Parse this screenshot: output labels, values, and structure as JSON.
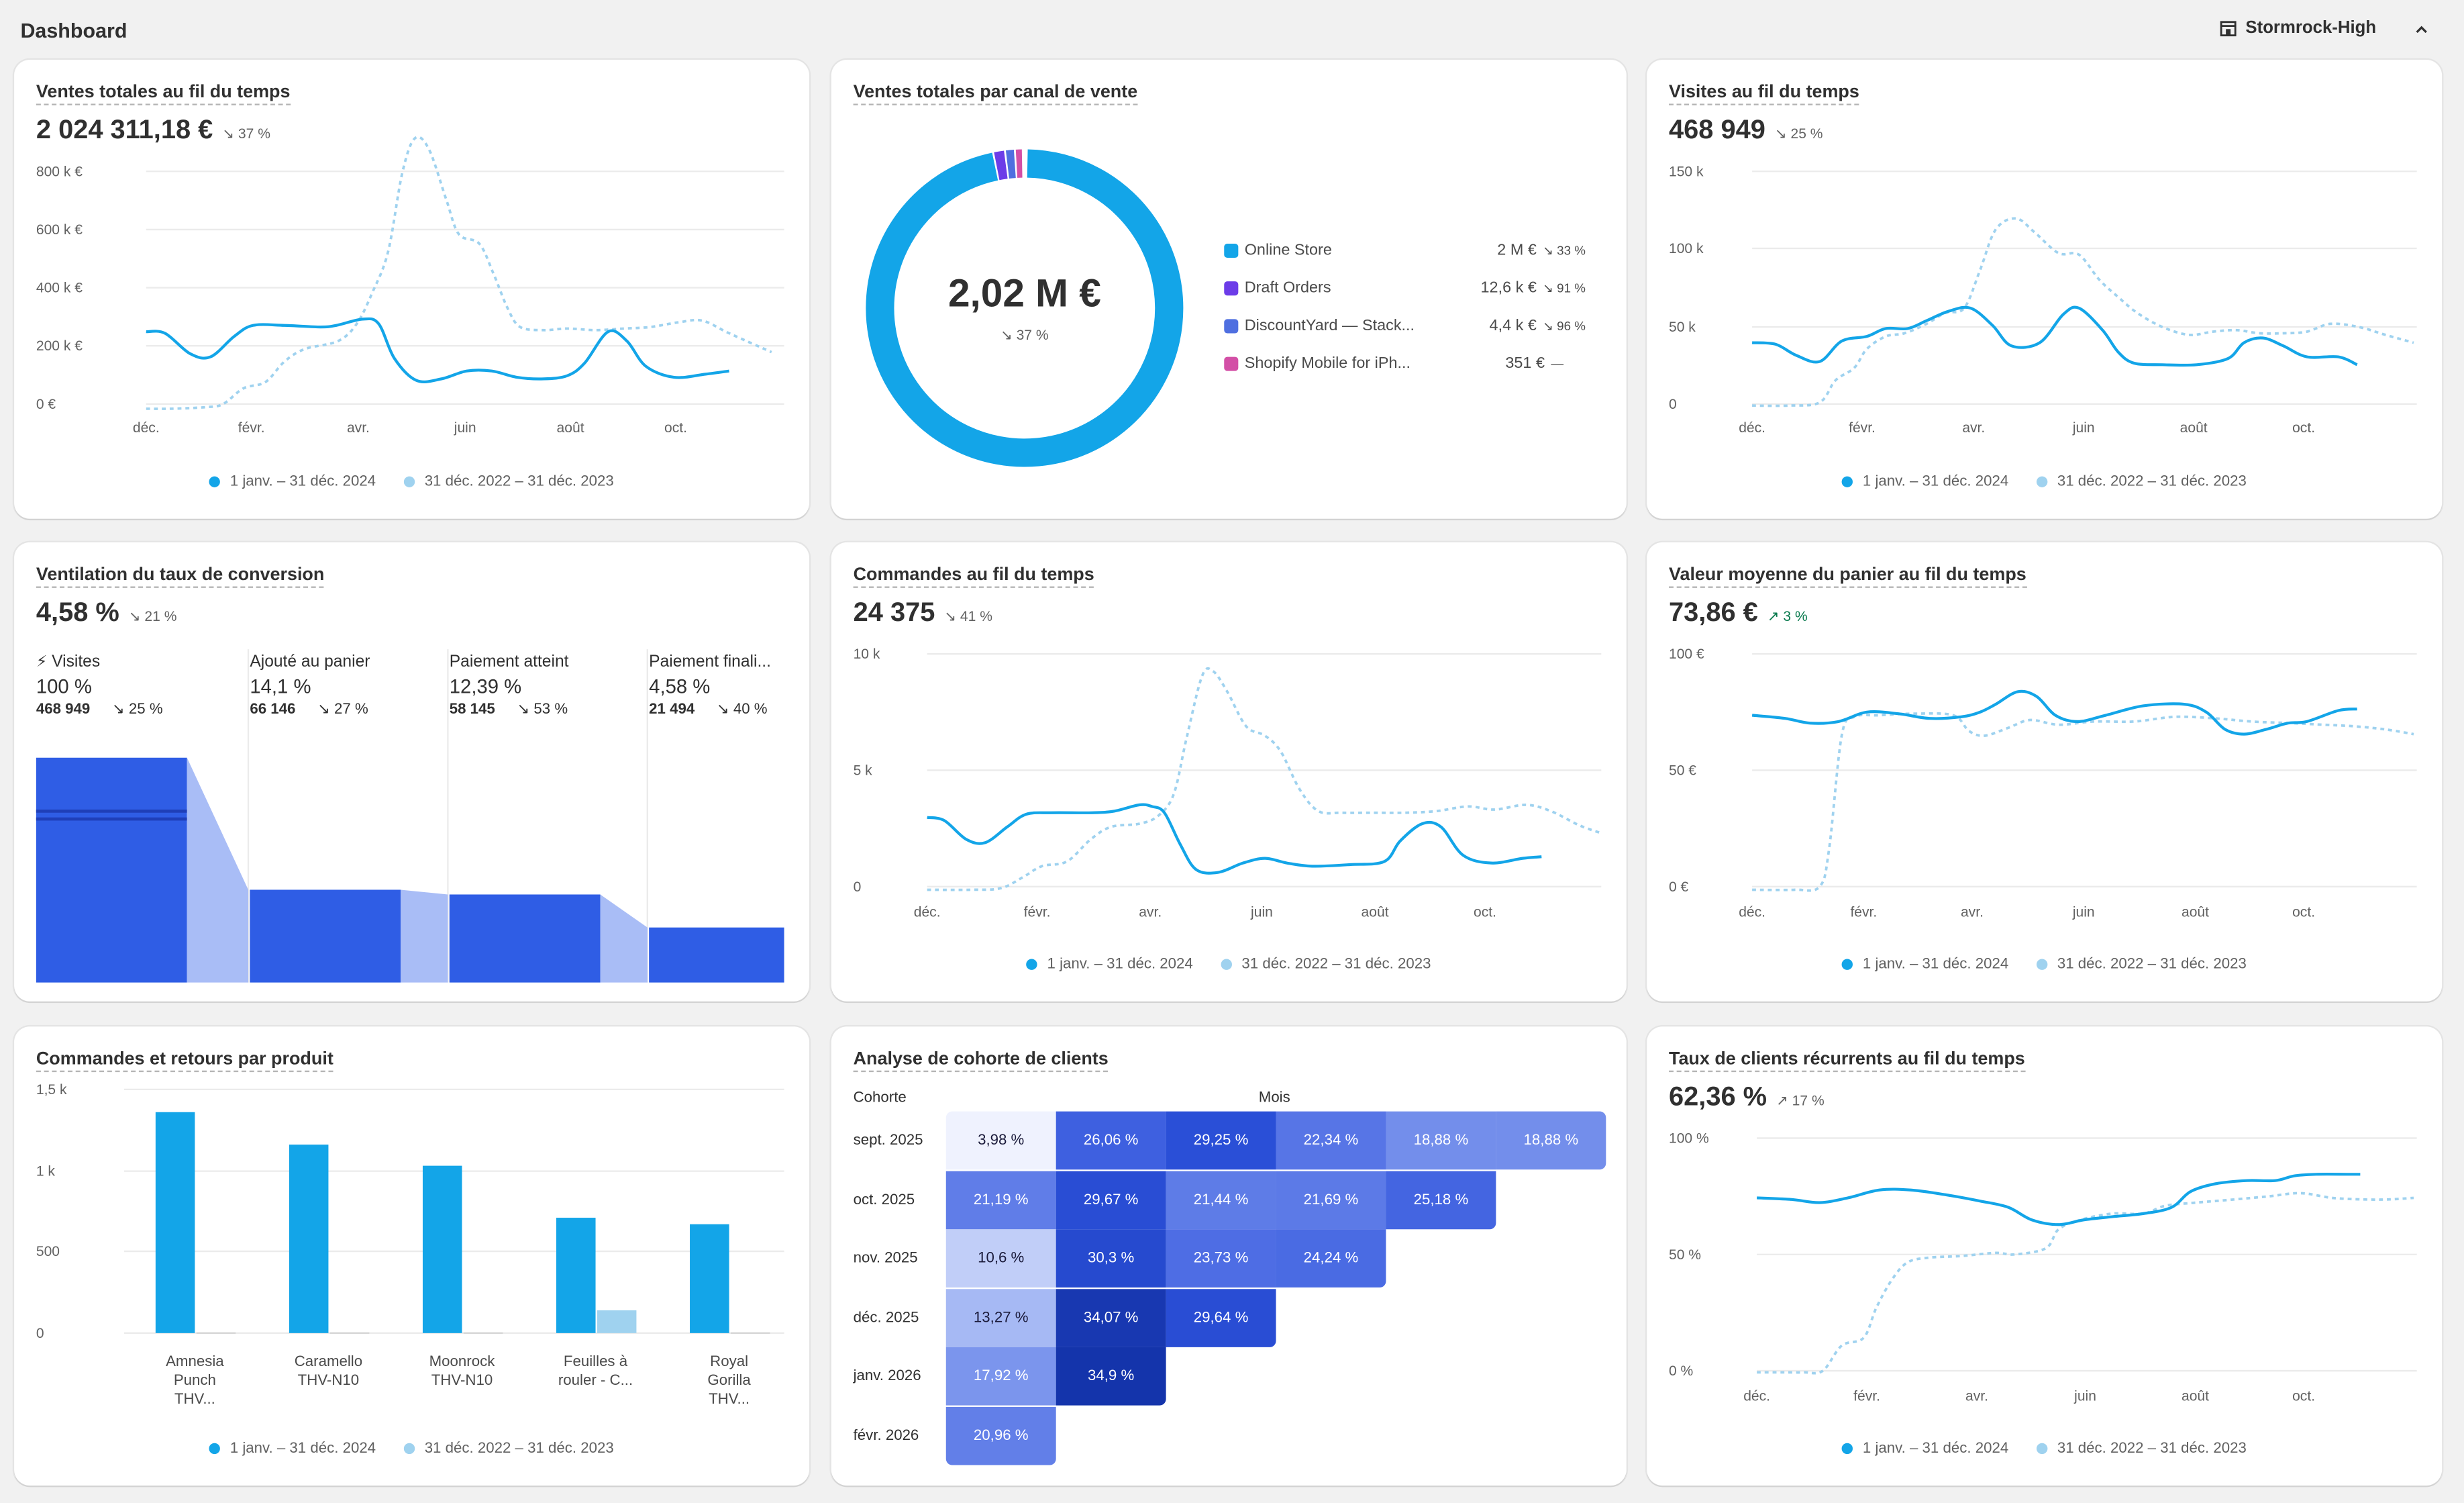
{
  "header": {
    "title": "Dashboard",
    "store_name": "Stormrock-High"
  },
  "legend": {
    "current": "1 janv. – 31 déc. 2024",
    "previous": "31 déc. 2022 – 31 déc. 2023"
  },
  "months": [
    "déc.",
    "févr.",
    "avr.",
    "juin",
    "août",
    "oct."
  ],
  "colors": {
    "current": "#13a5e8",
    "previous": "#9fd2ef",
    "funnel": "#2f5de5",
    "funnel_light": "#a9bdf6"
  },
  "total_sales": {
    "title": "Ventes totales au fil du temps",
    "value": "2 024 311,18 €",
    "change": "↘ 37 %",
    "y_ticks": [
      "800 k €",
      "600 k €",
      "400 k €",
      "200 k €",
      "0 €"
    ]
  },
  "channel_sales": {
    "title": "Ventes totales par canal de vente",
    "center_value": "2,02 M €",
    "center_change": "↘ 37 %",
    "channels": [
      {
        "name": "Online Store",
        "value": "2 M €",
        "change": "↘ 33 %",
        "color": "#13a5e8",
        "share": 0.9918
      },
      {
        "name": "Draft Orders",
        "value": "12,6 k €",
        "change": "↘ 91 %",
        "color": "#6c3ce8",
        "share": 0.0062
      },
      {
        "name": "DiscountYard — Stack...",
        "value": "4,4 k €",
        "change": "↘ 96 %",
        "color": "#4f6fe0",
        "share": 0.0022
      },
      {
        "name": "Shopify Mobile for iPh...",
        "value": "351 €",
        "change": "—",
        "color": "#d34fa6",
        "share": 0.0002
      }
    ]
  },
  "visits": {
    "title": "Visites au fil du temps",
    "value": "468 949",
    "change": "↘ 25 %",
    "y_ticks": [
      "150 k",
      "100 k",
      "50 k",
      "0"
    ]
  },
  "conversion": {
    "title": "Ventilation du taux de conversion",
    "value": "4,58 %",
    "change": "↘ 21 %",
    "steps": [
      {
        "label": "Visites",
        "pct": "100 %",
        "count": "468 949",
        "change": "↘ 25 %",
        "rate": 1.0
      },
      {
        "label": "Ajouté au panier",
        "pct": "14,1 %",
        "count": "66 146",
        "change": "↘ 27 %",
        "rate": 0.141
      },
      {
        "label": "Paiement atteint",
        "pct": "12,39 %",
        "count": "58 145",
        "change": "↘ 53 %",
        "rate": 0.1239
      },
      {
        "label": "Paiement finali...",
        "pct": "4,58 %",
        "count": "21 494",
        "change": "↘ 40 %",
        "rate": 0.0458
      }
    ]
  },
  "orders": {
    "title": "Commandes au fil du temps",
    "value": "24 375",
    "change": "↘ 41 %",
    "y_ticks": [
      "10 k",
      "5 k",
      "0"
    ]
  },
  "aov": {
    "title": "Valeur moyenne du panier au fil du temps",
    "value": "73,86 €",
    "change": "↗ 3 %",
    "y_ticks": [
      "100 €",
      "50 €",
      "0 €"
    ]
  },
  "products": {
    "title": "Commandes et retours par produit",
    "y_ticks": [
      "1,5 k",
      "1 k",
      "500",
      "0"
    ],
    "items": [
      {
        "name1": "Amnesia",
        "name2": "Punch",
        "name3": "THV...",
        "orders": 1360,
        "returns": 0
      },
      {
        "name1": "Caramello",
        "name2": "THV-N10",
        "name3": "",
        "orders": 1160,
        "returns": 0
      },
      {
        "name1": "Moonrock",
        "name2": "THV-N10",
        "name3": "",
        "orders": 1030,
        "returns": 0
      },
      {
        "name1": "Feuilles à",
        "name2": "rouler - C...",
        "name3": "",
        "orders": 710,
        "returns": 140
      },
      {
        "name1": "Royal",
        "name2": "Gorilla",
        "name3": "THV...",
        "orders": 670,
        "returns": 0
      }
    ]
  },
  "cohort": {
    "title": "Analyse de cohorte de clients",
    "col_cohort": "Cohorte",
    "col_months": "Mois",
    "rows": [
      {
        "label": "sept. 2025",
        "cells": [
          "3,98 %",
          "26,06 %",
          "29,25 %",
          "22,34 %",
          "18,88 %",
          "18,88 %"
        ]
      },
      {
        "label": "oct. 2025",
        "cells": [
          "21,19 %",
          "29,67 %",
          "21,44 %",
          "21,69 %",
          "25,18 %"
        ]
      },
      {
        "label": "nov. 2025",
        "cells": [
          "10,6 %",
          "30,3 %",
          "23,73 %",
          "24,24 %"
        ]
      },
      {
        "label": "déc. 2025",
        "cells": [
          "13,27 %",
          "34,07 %",
          "29,64 %"
        ]
      },
      {
        "label": "janv. 2026",
        "cells": [
          "17,92 %",
          "34,9 %"
        ]
      },
      {
        "label": "févr. 2026",
        "cells": [
          "20,96 %"
        ]
      }
    ]
  },
  "returning": {
    "title": "Taux de clients récurrents au fil du temps",
    "value": "62,36 %",
    "change": "↗ 17 %",
    "y_ticks": [
      "100 %",
      "50 %",
      "0 %"
    ]
  }
}
